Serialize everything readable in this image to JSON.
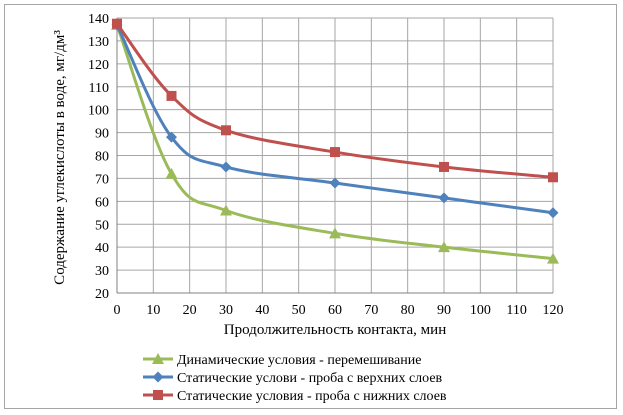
{
  "chart_data": {
    "type": "line",
    "xlabel": "Продолжительность контакта, мин",
    "ylabel": "Содержание углекислоты в воде, мг/дм³",
    "x": [
      0,
      15,
      30,
      60,
      90,
      120
    ],
    "xlim": [
      0,
      120
    ],
    "ylim": [
      20,
      140
    ],
    "xticks": [
      0,
      10,
      20,
      30,
      40,
      50,
      60,
      70,
      80,
      90,
      100,
      110,
      120
    ],
    "yticks": [
      20,
      30,
      40,
      50,
      60,
      70,
      80,
      90,
      100,
      110,
      120,
      130,
      140
    ],
    "grid": true,
    "legend_position": "bottom",
    "series": [
      {
        "name": "Динамические условия - перемешивание",
        "values": [
          137,
          72,
          56,
          46,
          40,
          35
        ],
        "color": "#9bbb59",
        "marker": "triangle"
      },
      {
        "name": "Статические услови - проба с верхних слоев",
        "values": [
          137,
          88,
          75,
          68,
          61.5,
          55
        ],
        "color": "#4f81bd",
        "marker": "diamond"
      },
      {
        "name": "Статические условия - проба с нижних слоев",
        "values": [
          137.5,
          106,
          91,
          81.5,
          75,
          70.5
        ],
        "color": "#c0504d",
        "marker": "square"
      }
    ]
  }
}
